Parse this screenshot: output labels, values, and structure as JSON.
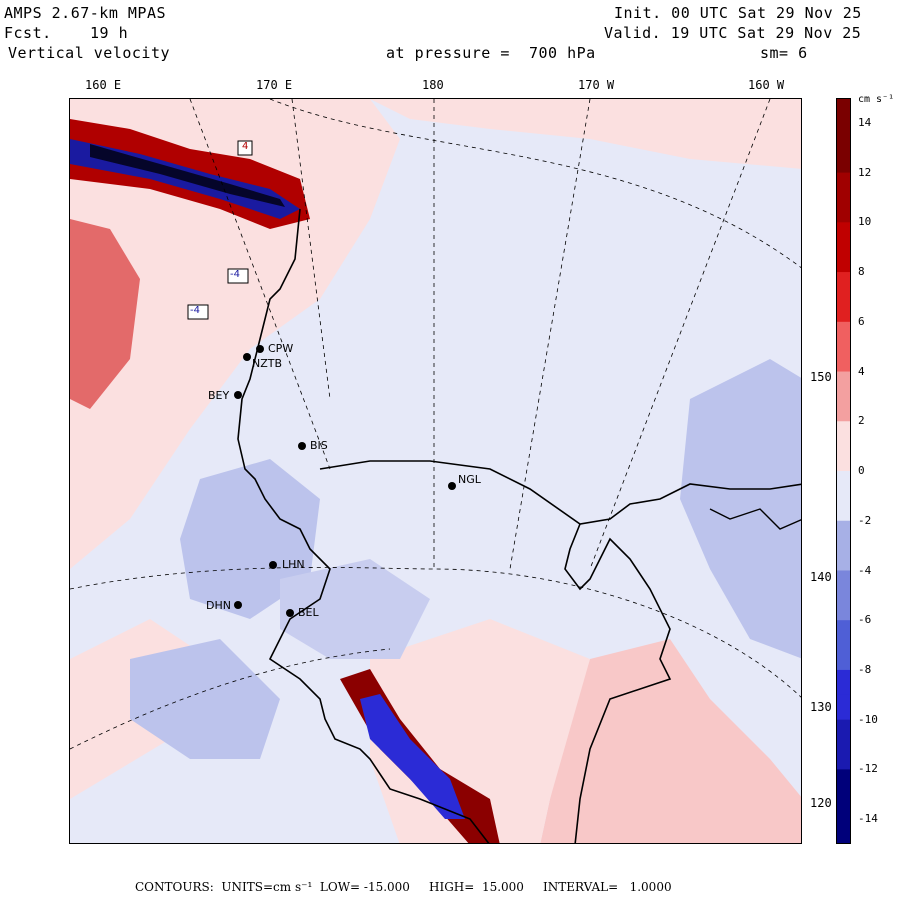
{
  "header": {
    "model": "AMPS 2.67-km MPAS",
    "forecast_label": "Fcst.",
    "forecast_value": "19 h",
    "field": "Vertical velocity",
    "init": "Init. 00 UTC Sat 29 Nov 25",
    "valid": "Valid. 19 UTC Sat 29 Nov 25",
    "pressure": "at pressure =  700 hPa",
    "smoothing": "sm= 6"
  },
  "axes": {
    "longitude_labels": [
      "160 E",
      "170 E",
      "180",
      "170 W",
      "160 W"
    ],
    "latitude_labels": [
      "150 W",
      "140 W",
      "130 W",
      "120 W"
    ]
  },
  "colorbar": {
    "unit": "cm s⁻¹",
    "ticks": [
      "14",
      "12",
      "10",
      "8",
      "6",
      "4",
      "2",
      "0",
      "-2",
      "-4",
      "-6",
      "-8",
      "-10",
      "-12",
      "-14"
    ],
    "colors": {
      "dark_red": "#7a0000",
      "red": "#d40000",
      "light_red": "#f3a0a0",
      "pale_red": "#fbe0e0",
      "pale_blue": "#e6e9f8",
      "light_blue": "#a7b0e6",
      "blue": "#2b2bd6",
      "dark_blue": "#00007a"
    }
  },
  "stations": [
    "CPW",
    "NZTB",
    "BEY",
    "BIS",
    "NGL",
    "BEL",
    "LHN",
    "DHN"
  ],
  "contour_labels": [
    "4",
    "-4",
    "-4"
  ],
  "footer": {
    "text": "CONTOURS:  UNITS=cm s⁻¹  LOW= -15.000     HIGH=  15.000     INTERVAL=   1.0000"
  }
}
